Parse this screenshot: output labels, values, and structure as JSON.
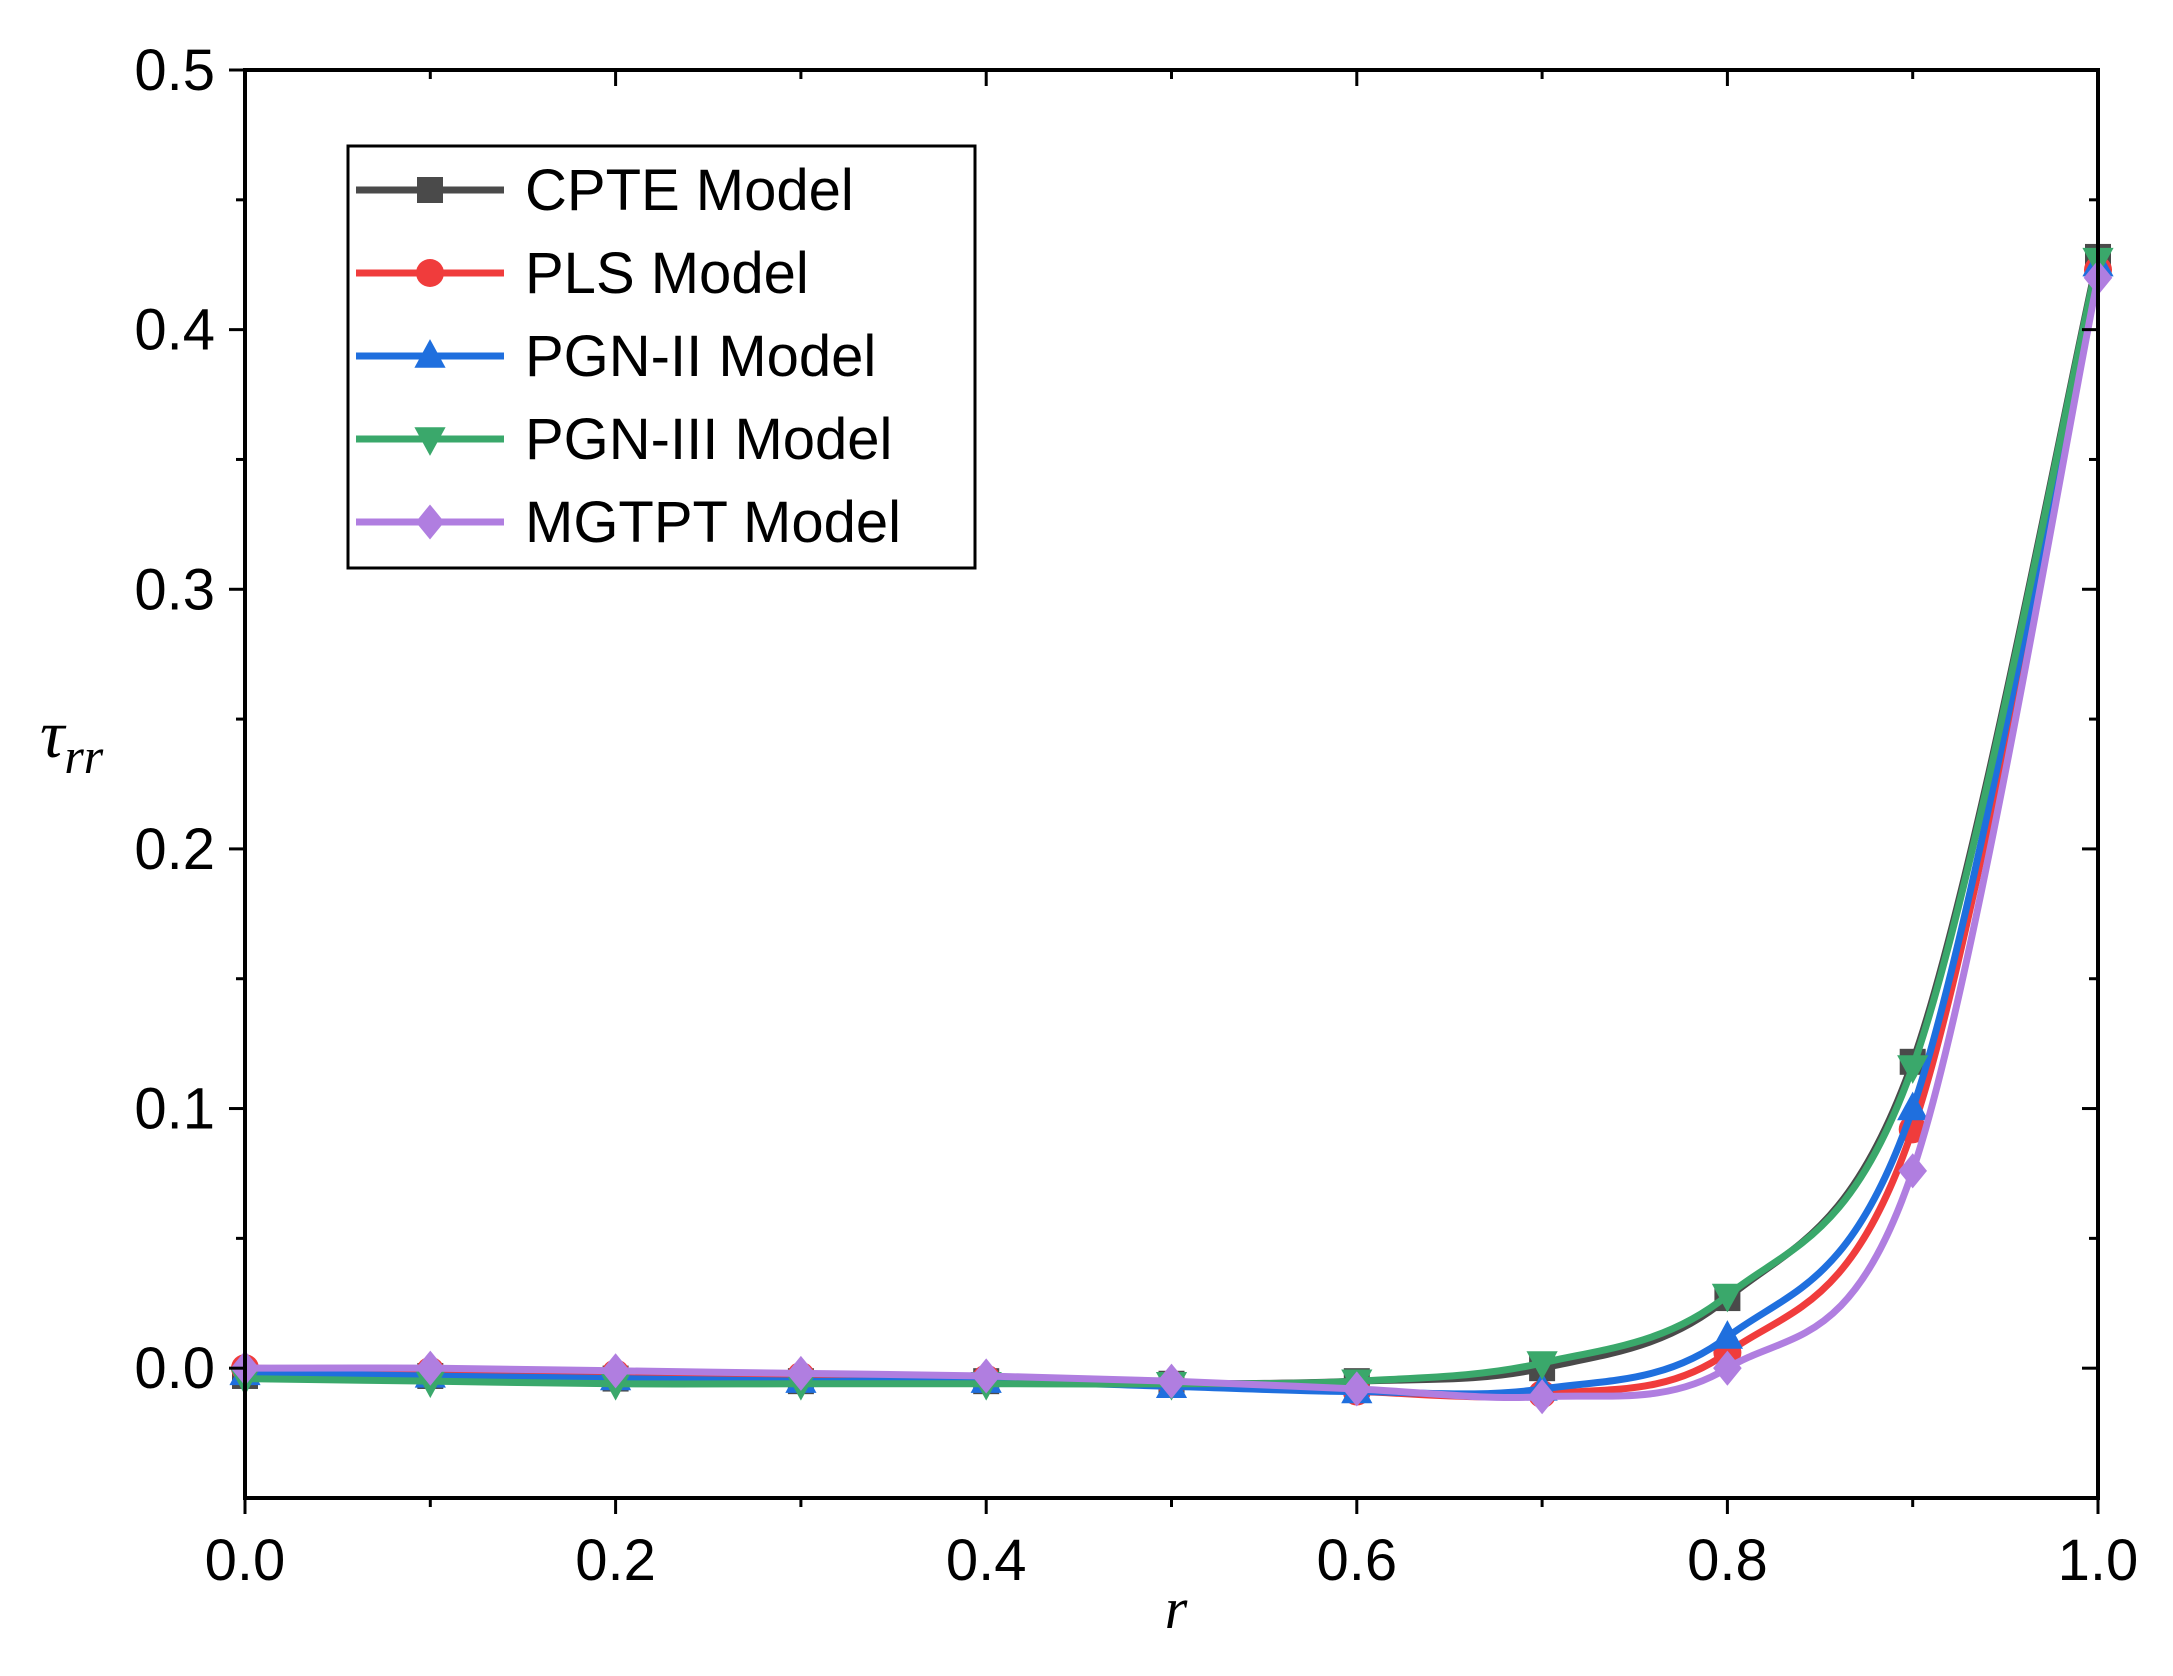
{
  "chart_data": {
    "type": "line",
    "title": "",
    "xlabel": "r",
    "ylabel": {
      "symbol": "τ",
      "subscript": "rr"
    },
    "xlim": [
      0.0,
      1.0
    ],
    "ylim": [
      -0.05,
      0.5
    ],
    "xticks": [
      0.0,
      0.2,
      0.4,
      0.6,
      0.8,
      1.0
    ],
    "xtick_labels": [
      "0.0",
      "0.2",
      "0.4",
      "0.6",
      "0.8",
      "1.0"
    ],
    "yticks": [
      0.0,
      0.1,
      0.2,
      0.3,
      0.4,
      0.5
    ],
    "ytick_labels": [
      "0.0",
      "0.1",
      "0.2",
      "0.3",
      "0.4",
      "0.5"
    ],
    "grid": false,
    "legend_position": "top-left",
    "x": [
      0.0,
      0.1,
      0.2,
      0.3,
      0.4,
      0.5,
      0.6,
      0.7,
      0.8,
      0.9,
      1.0
    ],
    "series": [
      {
        "name": "CPTE Model",
        "color": "#4a4a4a",
        "marker": "square",
        "values": [
          -0.003,
          -0.003,
          -0.004,
          -0.005,
          -0.005,
          -0.006,
          -0.005,
          0.0,
          0.027,
          0.118,
          0.428
        ]
      },
      {
        "name": "PLS Model",
        "color": "#f03c3c",
        "marker": "circle",
        "values": [
          0.0,
          -0.001,
          -0.002,
          -0.003,
          -0.004,
          -0.006,
          -0.009,
          -0.01,
          0.006,
          0.092,
          0.423
        ]
      },
      {
        "name": "PGN-II Model",
        "color": "#1f6fde",
        "marker": "triangle-up",
        "values": [
          -0.002,
          -0.003,
          -0.004,
          -0.005,
          -0.005,
          -0.007,
          -0.009,
          -0.008,
          0.012,
          0.1,
          0.425
        ]
      },
      {
        "name": "PGN-III Model",
        "color": "#3aa86b",
        "marker": "triangle-down",
        "values": [
          -0.004,
          -0.005,
          -0.006,
          -0.006,
          -0.006,
          -0.006,
          -0.005,
          0.002,
          0.028,
          0.116,
          0.427
        ]
      },
      {
        "name": "MGTPT Model",
        "color": "#b07ee0",
        "marker": "diamond",
        "values": [
          0.0,
          0.0,
          -0.001,
          -0.002,
          -0.003,
          -0.005,
          -0.008,
          -0.011,
          0.0,
          0.076,
          0.42
        ]
      }
    ]
  }
}
